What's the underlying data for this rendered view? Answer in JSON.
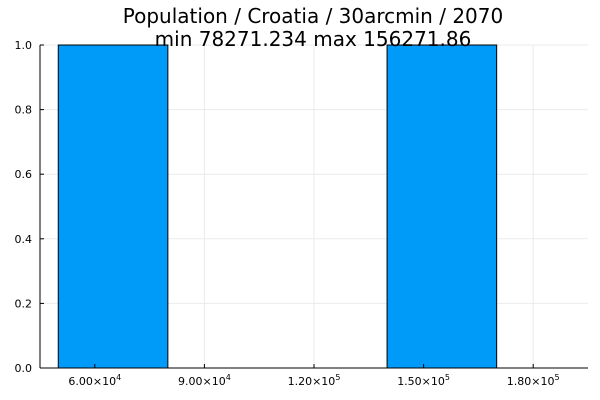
{
  "chart_data": {
    "type": "bar",
    "title_lines": [
      "Population / Croatia / 30arcmin / 2070",
      "min 78271.234  max 156271.86"
    ],
    "xlabel": "",
    "ylabel": "",
    "xlim": [
      45000,
      195000
    ],
    "ylim": [
      0,
      1
    ],
    "x_ticks": [
      {
        "value": 60000,
        "mantissa": "6.00×10",
        "exp": "4"
      },
      {
        "value": 90000,
        "mantissa": "9.00×10",
        "exp": "4"
      },
      {
        "value": 120000,
        "mantissa": "1.20×10",
        "exp": "5"
      },
      {
        "value": 150000,
        "mantissa": "1.50×10",
        "exp": "5"
      },
      {
        "value": 180000,
        "mantissa": "1.80×10",
        "exp": "5"
      }
    ],
    "y_ticks": [
      {
        "value": 0,
        "label": "0.0"
      },
      {
        "value": 0.2,
        "label": "0.2"
      },
      {
        "value": 0.4,
        "label": "0.4"
      },
      {
        "value": 0.6,
        "label": "0.6"
      },
      {
        "value": 0.8,
        "label": "0.8"
      },
      {
        "value": 1.0,
        "label": "1.0"
      }
    ],
    "bins": [
      {
        "x0": 50000,
        "x1": 80000,
        "value": 1
      },
      {
        "x0": 80000,
        "x1": 110000,
        "value": 0
      },
      {
        "x0": 110000,
        "x1": 140000,
        "value": 0
      },
      {
        "x0": 140000,
        "x1": 170000,
        "value": 1
      }
    ],
    "grid": true,
    "legend": "none",
    "colors": {
      "bar": "#009AF9",
      "edge": "#000000",
      "grid": "#EBEBEB"
    }
  }
}
